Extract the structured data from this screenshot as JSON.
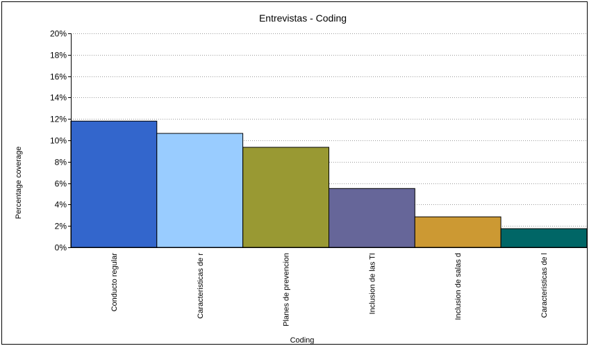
{
  "chart_data": {
    "type": "bar",
    "title": "Entrevistas - Coding",
    "xlabel": "Coding",
    "ylabel": "Percentage coverage",
    "ylim": [
      0,
      20
    ],
    "ytick_step": 2,
    "ytick_labels": [
      "0%",
      "2%",
      "4%",
      "6%",
      "8%",
      "10%",
      "12%",
      "14%",
      "16%",
      "18%",
      "20%"
    ],
    "grid": true,
    "legend": "none",
    "categories": [
      "Conducto regular",
      "Caracteristicas de r",
      "Planes de prevencion",
      "Inclusion de las TI",
      "Inclusion de salas d",
      "Caracteristicas de l"
    ],
    "values": [
      11.8,
      10.65,
      9.35,
      5.5,
      2.85,
      1.75
    ],
    "colors": [
      "#3366cc",
      "#99ccff",
      "#999933",
      "#666699",
      "#cc9933",
      "#006666"
    ]
  }
}
